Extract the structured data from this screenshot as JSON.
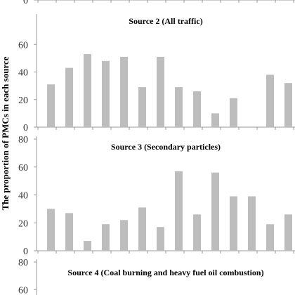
{
  "y_axis_label": "The proportion of PMCs in each source",
  "colors": {
    "bar": "#bdbdbd",
    "axis": "#999999",
    "text": "#333333"
  },
  "chart_data": [
    {
      "type": "bar",
      "title": "",
      "ylim": [
        0,
        80
      ],
      "y_ticks": [
        0
      ],
      "x_axis_visible": true,
      "values": [],
      "partial_view": "top-cut-off",
      "note": ""
    },
    {
      "type": "bar",
      "title": "Source 2 (All traffic)",
      "ylim": [
        0,
        80
      ],
      "y_ticks": [
        0,
        20,
        40,
        60
      ],
      "values": [
        31,
        43,
        53,
        48,
        51,
        29,
        51,
        29,
        26,
        10,
        21,
        0,
        38,
        32
      ]
    },
    {
      "type": "bar",
      "title": "Source 3 (Secondary particles)",
      "ylim": [
        0,
        80
      ],
      "y_ticks": [
        0,
        20,
        40,
        60,
        80
      ],
      "values": [
        30,
        27,
        7,
        19,
        22,
        31,
        17,
        57,
        26,
        56,
        39,
        39,
        19,
        26
      ]
    },
    {
      "type": "bar",
      "title": "Source 4 (Coal burning  and heavy fuel oil combustion)",
      "ylim": [
        0,
        80
      ],
      "y_ticks": [
        60,
        80
      ],
      "values": [],
      "partial_view": "bottom-cut-off"
    }
  ]
}
